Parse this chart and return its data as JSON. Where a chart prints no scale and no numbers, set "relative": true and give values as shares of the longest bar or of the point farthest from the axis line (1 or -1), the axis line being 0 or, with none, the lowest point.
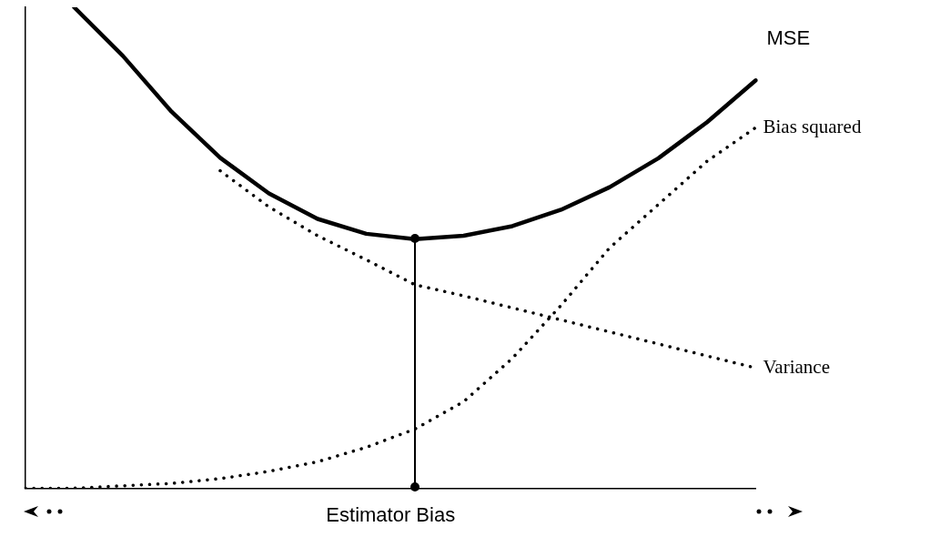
{
  "chart_data": {
    "type": "line",
    "relative": true,
    "xlabel": "Estimator Bias",
    "legend": false,
    "marker": "none",
    "categories": [
      null,
      null,
      null,
      null,
      null,
      null,
      null,
      null,
      null,
      null,
      null,
      null,
      null,
      null,
      null,
      null
    ],
    "series": [
      {
        "name": "MSE",
        "color": "#000000",
        "line_style": "solid",
        "values": [
          null,
          1.0,
          0.899,
          0.783,
          0.687,
          0.613,
          0.56,
          0.529,
          0.518,
          0.525,
          0.545,
          0.579,
          0.626,
          0.686,
          0.761,
          0.848
        ]
      },
      {
        "name": "Bias squared",
        "color": "#000000",
        "line_style": "dotted",
        "values": [
          0,
          0,
          0.005,
          0.01,
          0.02,
          0.035,
          0.055,
          0.085,
          0.123,
          0.18,
          0.27,
          0.38,
          0.5,
          0.59,
          0.68,
          0.75
        ]
      },
      {
        "name": "Variance",
        "color": "#000000",
        "line_style": "dotted",
        "values": [
          null,
          null,
          null,
          null,
          0.66,
          0.585,
          0.525,
          0.475,
          0.423,
          0.4,
          0.375,
          0.35,
          0.325,
          0.3,
          0.275,
          0.25
        ]
      }
    ]
  }
}
